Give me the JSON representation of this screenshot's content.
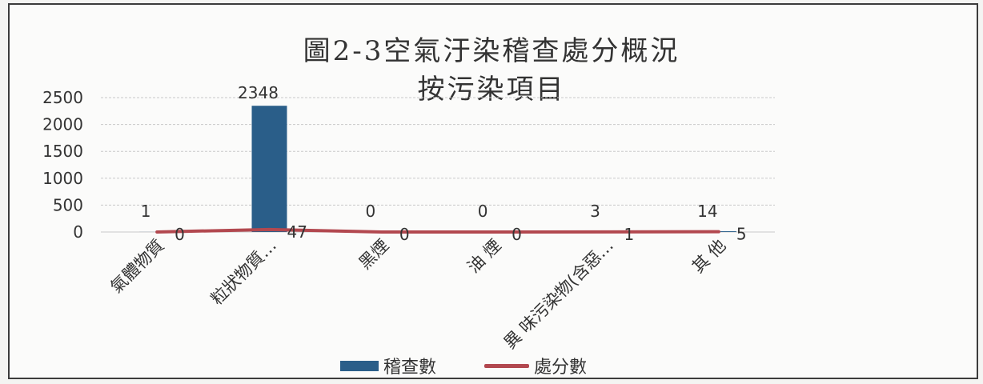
{
  "chart_data": {
    "type": "bar",
    "title": "圖2-3空氣汙染稽查處分概況",
    "subtitle": "按污染項目",
    "categories": [
      "氣體物質",
      "粒狀物質…",
      "黑煙",
      "油 煙",
      "異 味污染物(含惡…",
      "其 他"
    ],
    "series": [
      {
        "name": "稽查數",
        "type": "bar",
        "color": "#2a5e89",
        "values": [
          1,
          2348,
          0,
          0,
          3,
          14
        ]
      },
      {
        "name": "處分數",
        "type": "line",
        "color": "#b2484f",
        "values": [
          0,
          47,
          0,
          0,
          1,
          5
        ]
      }
    ],
    "yticks": [
      "0",
      "500",
      "1000",
      "1500",
      "2000",
      "2500"
    ],
    "ylim": [
      0,
      2500
    ],
    "grid": true,
    "legend_position": "bottom"
  }
}
